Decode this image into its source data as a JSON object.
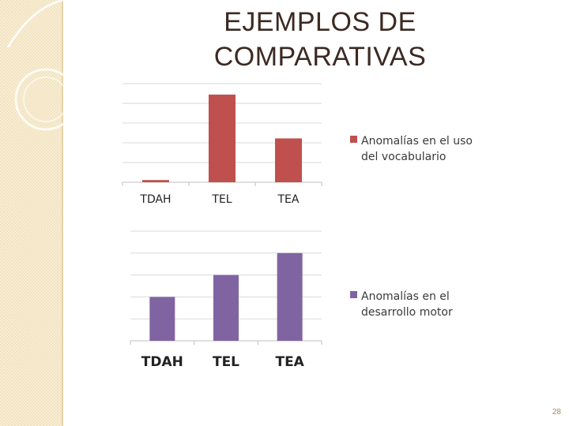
{
  "slide": {
    "title_line1": "EJEMPLOS DE",
    "title_line2": "COMPARATIVAS",
    "page_number": "28"
  },
  "colors": {
    "red_series": "#c0504d",
    "purple_series": "#8064a2",
    "grid": "#d9d9d9",
    "side_strip": "#f3e4c0"
  },
  "chart_data": [
    {
      "type": "bar",
      "categories": [
        "TDAH",
        "TEL",
        "TEA"
      ],
      "series": [
        {
          "name": "Anomalías en el uso del vocabulario",
          "values": [
            0.1,
            4,
            2
          ]
        }
      ],
      "legend_lines": [
        "Anomalías en el uso",
        "del vocabulario"
      ],
      "ylim": [
        0,
        4.5
      ],
      "grid": true,
      "legend_position": "right"
    },
    {
      "type": "bar",
      "categories": [
        "TDAH",
        "TEL",
        "TEA"
      ],
      "series": [
        {
          "name": "Anomalías en el desarrollo motor",
          "values": [
            2,
            3,
            4
          ]
        }
      ],
      "legend_lines": [
        "Anomalías en el",
        "desarrollo motor"
      ],
      "ylim": [
        0,
        5
      ],
      "grid": true,
      "legend_position": "right"
    }
  ]
}
